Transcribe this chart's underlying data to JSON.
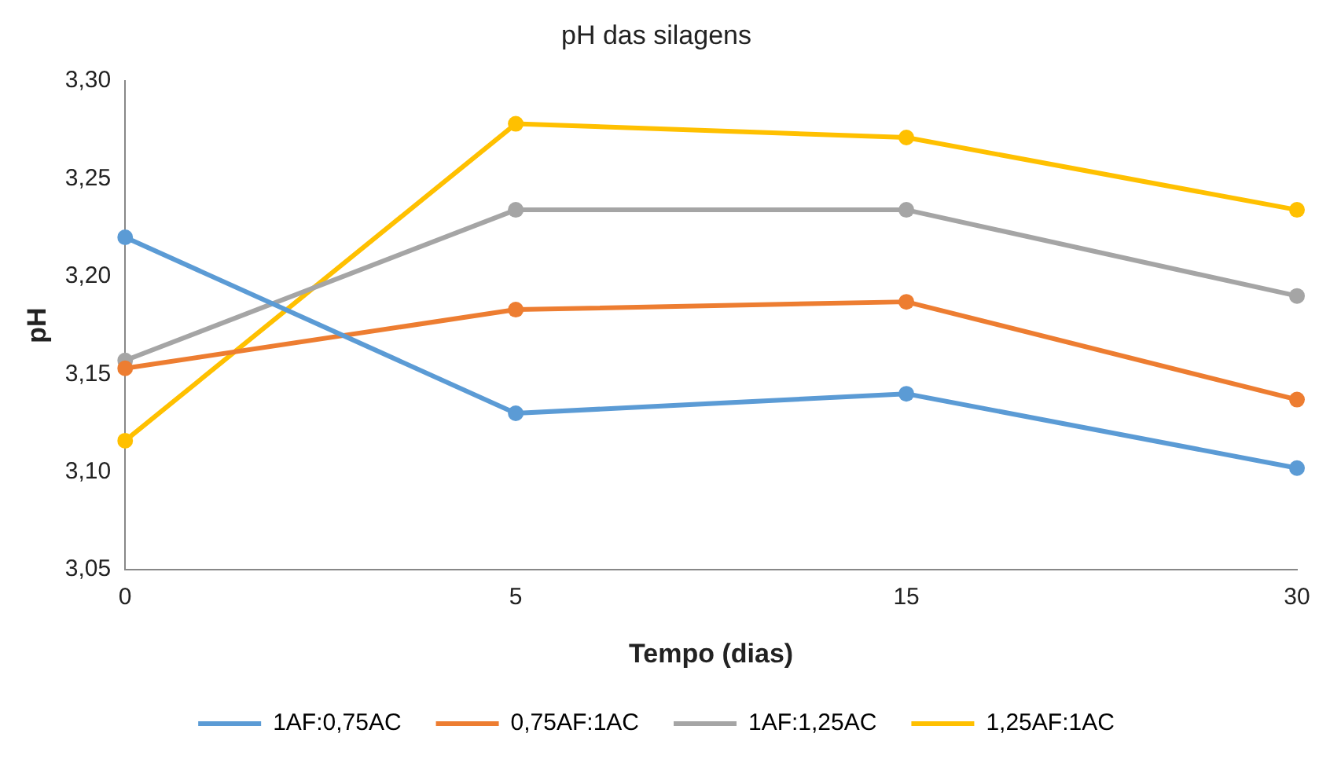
{
  "chart_data": {
    "type": "line",
    "title": "pH das silagens",
    "xlabel": "Tempo (dias)",
    "ylabel": "pH",
    "categories": [
      "0",
      "5",
      "15",
      "30"
    ],
    "series": [
      {
        "name": "1AF:0,75AC",
        "color": "#5b9bd5",
        "values": [
          3.22,
          3.13,
          3.14,
          3.102
        ]
      },
      {
        "name": "0,75AF:1AC",
        "color": "#ed7d31",
        "values": [
          3.153,
          3.183,
          3.187,
          3.137
        ]
      },
      {
        "name": "1AF:1,25AC",
        "color": "#a5a5a5",
        "values": [
          3.157,
          3.234,
          3.234,
          3.19
        ]
      },
      {
        "name": "1,25AF:1AC",
        "color": "#ffc000",
        "values": [
          3.116,
          3.278,
          3.271,
          3.234
        ]
      }
    ],
    "ylim": [
      3.05,
      3.3
    ],
    "yticks": [
      {
        "value": 3.05,
        "label": "3,05"
      },
      {
        "value": 3.1,
        "label": "3,10"
      },
      {
        "value": 3.15,
        "label": "3,15"
      },
      {
        "value": 3.2,
        "label": "3,20"
      },
      {
        "value": 3.25,
        "label": "3,25"
      },
      {
        "value": 3.3,
        "label": "3,30"
      }
    ],
    "grid": false,
    "legend": "bottom",
    "marker": "circle",
    "line_style": "solid"
  }
}
